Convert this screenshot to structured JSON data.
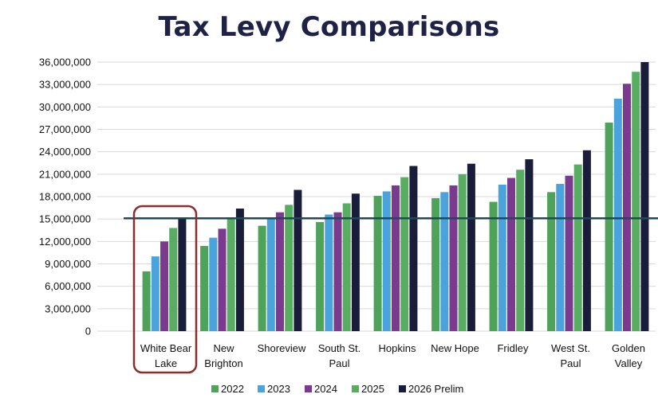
{
  "chart_data": {
    "type": "bar",
    "title": "Tax Levy Comparisons",
    "xlabel": "",
    "ylabel": "",
    "ylim": [
      0,
      36000000
    ],
    "yticks": [
      0,
      3000000,
      6000000,
      9000000,
      12000000,
      15000000,
      18000000,
      21000000,
      24000000,
      27000000,
      30000000,
      33000000,
      36000000
    ],
    "ytick_labels": [
      "0",
      "3,000,000",
      "6,000,000",
      "9,000,000",
      "12,000,000",
      "15,000,000",
      "18,000,000",
      "21,000,000",
      "24,000,000",
      "27,000,000",
      "30,000,000",
      "33,000,000",
      "36,000,000"
    ],
    "grid": true,
    "legend_position": "bottom",
    "categories": [
      [
        "White Bear",
        "Lake"
      ],
      [
        "New",
        "Brighton"
      ],
      [
        "Shoreview"
      ],
      [
        "South St.",
        "Paul"
      ],
      [
        "Hopkins"
      ],
      [
        "New Hope"
      ],
      [
        "Fridley"
      ],
      [
        "West St.",
        "Paul"
      ],
      [
        "Golden",
        "Valley"
      ]
    ],
    "series": [
      {
        "name": "2022",
        "color": "#4ea25a",
        "values": [
          8000000,
          11400000,
          14100000,
          14600000,
          18100000,
          17800000,
          17300000,
          18600000,
          27900000
        ]
      },
      {
        "name": "2023",
        "color": "#4aa3dc",
        "values": [
          10000000,
          12500000,
          15000000,
          15600000,
          18700000,
          18600000,
          19600000,
          19700000,
          31100000
        ]
      },
      {
        "name": "2024",
        "color": "#7a3b8f",
        "values": [
          12000000,
          13700000,
          15900000,
          15900000,
          19500000,
          19500000,
          20500000,
          20800000,
          33100000
        ]
      },
      {
        "name": "2025",
        "color": "#59ad63",
        "values": [
          13800000,
          15200000,
          16900000,
          17100000,
          20600000,
          21000000,
          21600000,
          22300000,
          34700000
        ]
      },
      {
        "name": "2026 Prelim",
        "color": "#1a1d3a",
        "values": [
          15000000,
          16400000,
          18900000,
          18400000,
          22100000,
          22400000,
          23000000,
          24200000,
          36000000
        ]
      }
    ],
    "annotations": {
      "reference_line_value": 15100000,
      "reference_line_color": "#1e4a5a",
      "highlight_category_index": 0,
      "highlight_color": "#8b2e2e"
    }
  }
}
